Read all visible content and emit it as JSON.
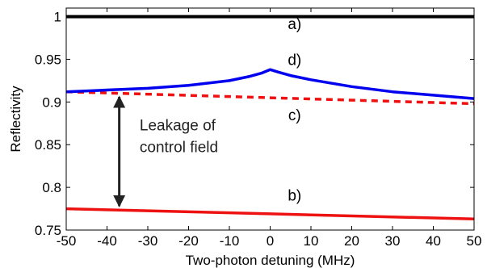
{
  "chart_data": {
    "type": "line",
    "xlabel": "Two-photon detuning (MHz)",
    "ylabel": "Reflectivity",
    "xlim": [
      -50,
      50
    ],
    "ylim": [
      0.75,
      1.01
    ],
    "xticks": [
      "-50",
      "-40",
      "-30",
      "-20",
      "-10",
      "0",
      "10",
      "20",
      "30",
      "40",
      "50"
    ],
    "yticks": [
      "0.75",
      "0.8",
      "0.85",
      "0.9",
      "0.95",
      "1"
    ],
    "grid": false,
    "series": [
      {
        "label": "a)",
        "color": "#000000",
        "style": "solid",
        "x": [
          -50,
          50
        ],
        "y": [
          1.0,
          1.0
        ]
      },
      {
        "label": "b)",
        "color": "#ee1111",
        "style": "solid",
        "x": [
          -50,
          -25,
          0,
          25,
          50
        ],
        "y": [
          0.775,
          0.772,
          0.769,
          0.766,
          0.763
        ]
      },
      {
        "label": "c)",
        "color": "#ee1111",
        "style": "dashed",
        "x": [
          -50,
          -25,
          0,
          25,
          50
        ],
        "y": [
          0.912,
          0.9085,
          0.905,
          0.9015,
          0.898
        ]
      },
      {
        "label": "d)",
        "color": "#0000ee",
        "style": "solid",
        "x": [
          -50,
          -40,
          -30,
          -20,
          -10,
          -5,
          -2,
          0,
          2,
          5,
          10,
          20,
          30,
          40,
          50
        ],
        "y": [
          0.912,
          0.914,
          0.916,
          0.9195,
          0.925,
          0.93,
          0.934,
          0.938,
          0.935,
          0.931,
          0.926,
          0.918,
          0.912,
          0.908,
          0.904
        ]
      }
    ],
    "annotation": {
      "lines": [
        "Leakage of",
        "control field"
      ],
      "arrow": {
        "x": -37,
        "y_from": 0.906,
        "y_to": 0.778
      }
    }
  }
}
